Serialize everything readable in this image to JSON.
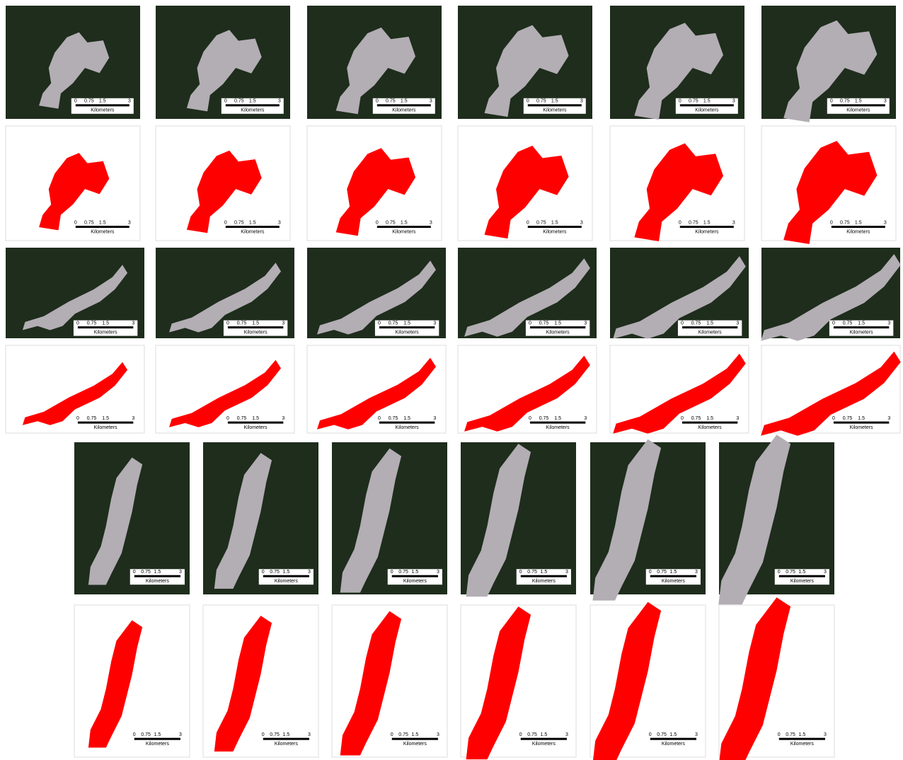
{
  "scale_bar": {
    "ticks": [
      "0",
      "0.75",
      "1.5",
      "3"
    ],
    "unit": "Kilometers"
  }
}
